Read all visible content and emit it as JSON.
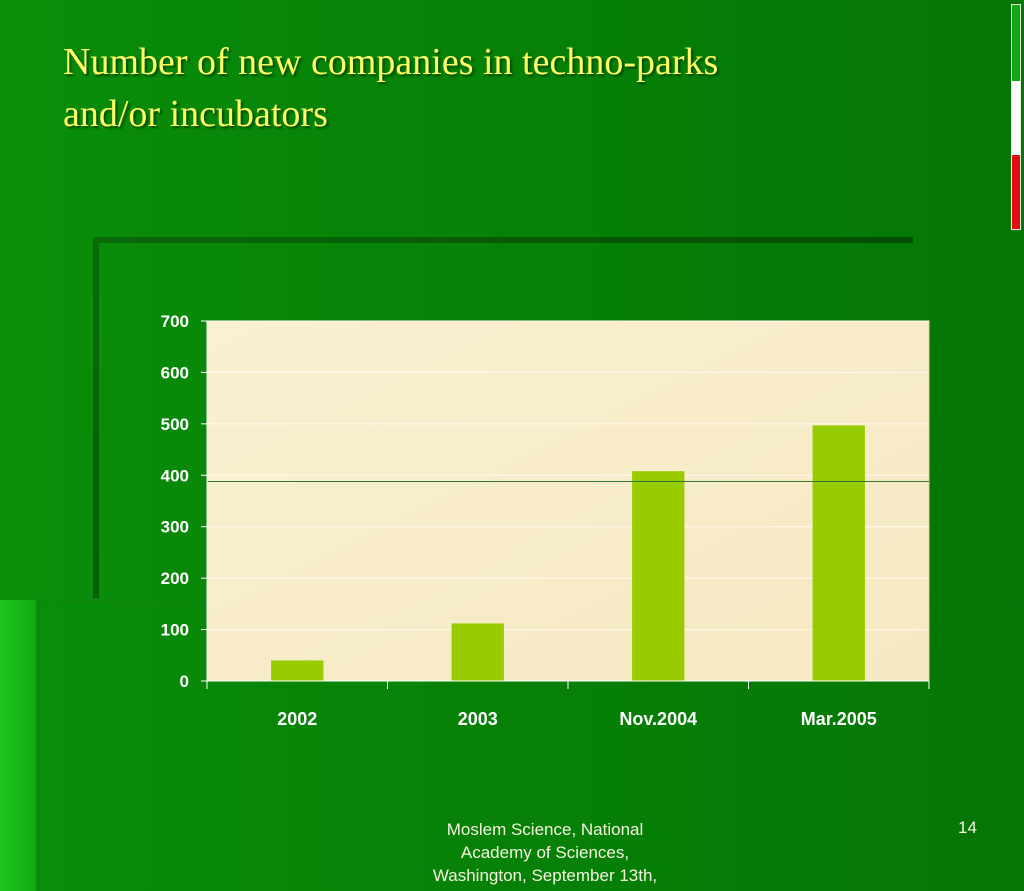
{
  "slide": {
    "title_lines": [
      "Number of new companies in techno-parks",
      "and/or incubators"
    ],
    "footer_lines": [
      "Moslem Science, National",
      "Academy of Sciences,",
      "Washington, September 13th,"
    ],
    "page_number": "14"
  },
  "colors": {
    "background": "#078507",
    "title": "#ffff66",
    "plot_area": "#f7eccb",
    "bar": "#99cc00",
    "flag_green": "#13a813",
    "flag_white": "#ffffff",
    "flag_red": "#e01010"
  },
  "chart_data": {
    "type": "bar",
    "title": "",
    "xlabel": "",
    "ylabel": "",
    "categories": [
      "2002",
      "2003",
      "Nov.2004",
      "Mar.2005"
    ],
    "values": [
      40,
      112,
      408,
      497
    ],
    "ylim": [
      0,
      700
    ],
    "yticks": [
      0,
      100,
      200,
      300,
      400,
      500,
      600,
      700
    ],
    "reference_line_value": 388,
    "grid": true,
    "legend": "none"
  }
}
